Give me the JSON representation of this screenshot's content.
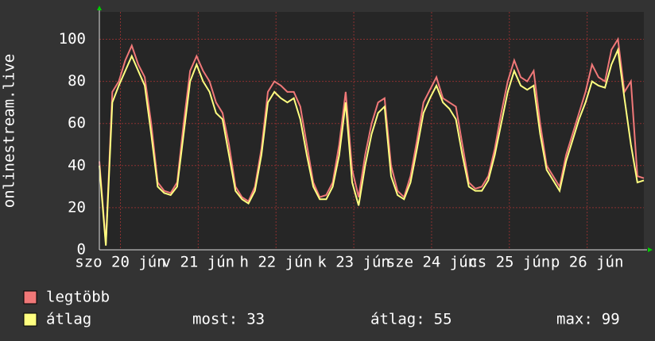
{
  "chart_data": {
    "type": "line",
    "y_label": "onlinestream.live",
    "x": [
      0,
      2,
      4,
      6,
      8,
      10,
      12,
      14,
      16,
      18,
      20,
      22,
      24,
      26,
      28,
      30,
      32,
      34,
      36,
      38,
      40,
      42,
      44,
      46,
      48,
      50,
      52,
      54,
      56,
      58,
      60,
      62,
      64,
      66,
      68,
      70,
      72,
      74,
      76,
      78,
      80,
      82,
      84,
      86,
      88,
      90,
      92,
      94,
      96,
      98,
      100,
      102,
      104,
      106,
      108,
      110,
      112,
      114,
      116,
      118,
      120,
      122,
      124,
      126,
      128,
      130,
      132,
      134,
      136,
      138,
      140,
      142,
      144,
      146,
      148,
      150,
      152,
      154,
      156,
      158,
      160,
      162,
      164,
      166,
      168
    ],
    "series": [
      {
        "name": "legtöbb",
        "color": "#f07878",
        "values": [
          42,
          3,
          75,
          80,
          90,
          97,
          88,
          82,
          60,
          32,
          28,
          27,
          32,
          60,
          85,
          92,
          85,
          80,
          70,
          65,
          50,
          30,
          25,
          23,
          30,
          48,
          75,
          80,
          78,
          75,
          75,
          68,
          50,
          32,
          25,
          26,
          32,
          50,
          75,
          38,
          25,
          45,
          60,
          70,
          72,
          40,
          28,
          25,
          35,
          52,
          70,
          76,
          82,
          72,
          70,
          68,
          50,
          32,
          29,
          30,
          35,
          48,
          65,
          80,
          90,
          82,
          80,
          85,
          60,
          40,
          35,
          30,
          45,
          55,
          65,
          75,
          88,
          82,
          80,
          95,
          100,
          75,
          80,
          35,
          34
        ]
      },
      {
        "name": "átlag",
        "color": "#ffff80",
        "values": [
          40,
          2,
          70,
          78,
          85,
          92,
          85,
          78,
          55,
          30,
          27,
          26,
          30,
          55,
          80,
          88,
          80,
          75,
          65,
          62,
          45,
          28,
          24,
          22,
          28,
          45,
          70,
          75,
          72,
          70,
          72,
          62,
          45,
          30,
          24,
          24,
          30,
          45,
          70,
          32,
          21,
          40,
          55,
          65,
          68,
          35,
          26,
          24,
          32,
          48,
          65,
          72,
          78,
          70,
          67,
          62,
          45,
          30,
          28,
          28,
          33,
          45,
          60,
          75,
          85,
          78,
          76,
          78,
          55,
          38,
          33,
          28,
          42,
          52,
          62,
          70,
          80,
          78,
          77,
          88,
          95,
          72,
          50,
          32,
          33
        ]
      }
    ],
    "xlim": [
      0,
      168
    ],
    "xticks": [
      {
        "value": 6.5,
        "label": "szo 20 jún"
      },
      {
        "value": 30.5,
        "label": "v 21 jún"
      },
      {
        "value": 54.5,
        "label": "h 22 jún"
      },
      {
        "value": 78.5,
        "label": "k 23 jún"
      },
      {
        "value": 102.5,
        "label": "sze 24 jún"
      },
      {
        "value": 126.5,
        "label": "cs 25 jún"
      },
      {
        "value": 150.5,
        "label": "p 26 jún"
      }
    ],
    "ylim": [
      0,
      113
    ],
    "yticks": [
      0,
      20,
      40,
      60,
      80,
      100
    ],
    "grid": true,
    "stats": [
      {
        "label": "most:",
        "value": 33
      },
      {
        "label": "átlag:",
        "value": 55
      },
      {
        "label": "max:",
        "value": 99
      }
    ]
  }
}
